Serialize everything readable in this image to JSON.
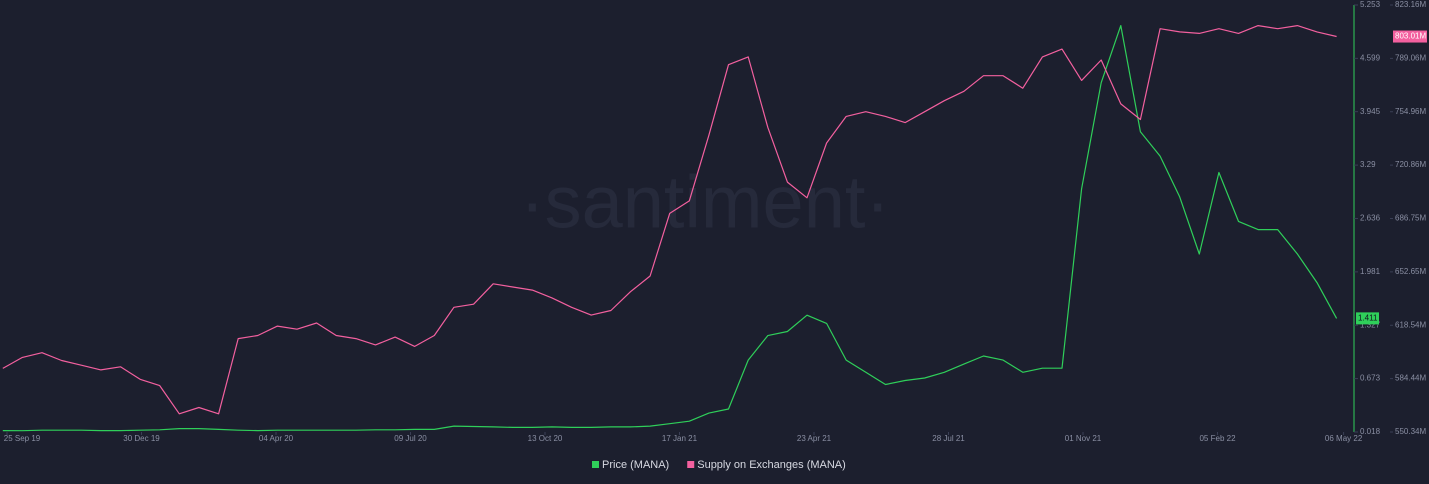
{
  "chart_data": {
    "type": "line",
    "watermark": "·santiment·",
    "x": [
      "2019-09-22",
      "2019-10-06",
      "2019-10-20",
      "2019-11-03",
      "2019-11-17",
      "2019-12-01",
      "2019-12-15",
      "2019-12-29",
      "2020-01-12",
      "2020-01-26",
      "2020-02-09",
      "2020-02-23",
      "2020-03-08",
      "2020-03-22",
      "2020-04-05",
      "2020-04-19",
      "2020-05-03",
      "2020-05-17",
      "2020-05-31",
      "2020-06-14",
      "2020-06-28",
      "2020-07-12",
      "2020-07-26",
      "2020-08-09",
      "2020-08-23",
      "2020-09-06",
      "2020-09-20",
      "2020-10-04",
      "2020-10-18",
      "2020-11-01",
      "2020-11-15",
      "2020-11-29",
      "2020-12-13",
      "2020-12-27",
      "2021-01-10",
      "2021-01-24",
      "2021-02-07",
      "2021-02-21",
      "2021-03-07",
      "2021-03-21",
      "2021-04-04",
      "2021-04-18",
      "2021-05-02",
      "2021-05-16",
      "2021-05-30",
      "2021-06-13",
      "2021-06-27",
      "2021-07-11",
      "2021-07-25",
      "2021-08-08",
      "2021-08-22",
      "2021-09-05",
      "2021-09-19",
      "2021-10-03",
      "2021-10-17",
      "2021-10-31",
      "2021-11-14",
      "2021-11-28",
      "2021-12-12",
      "2021-12-26",
      "2022-01-09",
      "2022-01-23",
      "2022-02-06",
      "2022-02-20",
      "2022-03-06",
      "2022-03-20",
      "2022-04-03",
      "2022-04-17",
      "2022-05-01"
    ],
    "xlim": [
      "2019-09-20",
      "2022-05-12"
    ],
    "xticks": [
      {
        "value": "2019-09-25",
        "label": "25 Sep 19"
      },
      {
        "value": "2019-12-30",
        "label": "30 Dec 19"
      },
      {
        "value": "2020-04-04",
        "label": "04 Apr 20"
      },
      {
        "value": "2020-07-09",
        "label": "09 Jul 20"
      },
      {
        "value": "2020-10-13",
        "label": "13 Oct 20"
      },
      {
        "value": "2021-01-17",
        "label": "17 Jan 21"
      },
      {
        "value": "2021-04-23",
        "label": "23 Apr 21"
      },
      {
        "value": "2021-07-28",
        "label": "28 Jul 21"
      },
      {
        "value": "2021-11-01",
        "label": "01 Nov 21"
      },
      {
        "value": "2022-02-05",
        "label": "05 Feb 22"
      },
      {
        "value": "2022-05-06",
        "label": "06 May 22"
      }
    ],
    "ylim": [
      0.018,
      5.253
    ],
    "yticks": [
      0.018,
      0.673,
      1.327,
      1.981,
      2.636,
      3.29,
      3.945,
      4.599,
      5.253
    ],
    "y2lim": [
      550340000,
      823160000
    ],
    "y2ticks": [
      {
        "value": 550340000,
        "label": "550.34M"
      },
      {
        "value": 584440000,
        "label": "584.44M"
      },
      {
        "value": 618540000,
        "label": "618.54M"
      },
      {
        "value": 652650000,
        "label": "652.65M"
      },
      {
        "value": 686750000,
        "label": "686.75M"
      },
      {
        "value": 720860000,
        "label": "720.86M"
      },
      {
        "value": 754960000,
        "label": "754.96M"
      },
      {
        "value": 789060000,
        "label": "789.06M"
      },
      {
        "value": 823160000,
        "label": "823.16M"
      }
    ],
    "series": [
      {
        "name": "Price (MANA)",
        "color": "#2fcf5a",
        "axis": "y",
        "values": [
          0.035,
          0.034,
          0.04,
          0.04,
          0.04,
          0.035,
          0.035,
          0.04,
          0.045,
          0.06,
          0.06,
          0.05,
          0.04,
          0.035,
          0.04,
          0.04,
          0.04,
          0.04,
          0.04,
          0.045,
          0.045,
          0.05,
          0.05,
          0.09,
          0.085,
          0.08,
          0.075,
          0.075,
          0.08,
          0.075,
          0.075,
          0.08,
          0.08,
          0.09,
          0.12,
          0.15,
          0.25,
          0.3,
          0.9,
          1.2,
          1.25,
          1.45,
          1.35,
          0.9,
          0.75,
          0.6,
          0.65,
          0.68,
          0.75,
          0.85,
          0.95,
          0.9,
          0.75,
          0.8,
          0.8,
          3.0,
          4.3,
          5.0,
          3.7,
          3.4,
          2.9,
          2.2,
          3.2,
          2.6,
          2.5,
          2.5,
          2.2,
          1.85,
          1.411
        ]
      },
      {
        "name": "Supply on Exchanges (MANA)",
        "color": "#f3609f",
        "axis": "y2",
        "last_label": "803.01M",
        "values": [
          591000000,
          598000000,
          601000000,
          596000000,
          593000000,
          590000000,
          592000000,
          584000000,
          580000000,
          562000000,
          566000000,
          562000000,
          610000000,
          612000000,
          618000000,
          616000000,
          620000000,
          612000000,
          610000000,
          606000000,
          611000000,
          605000000,
          612000000,
          630000000,
          632000000,
          645000000,
          643000000,
          641000000,
          636000000,
          630000000,
          625000000,
          628000000,
          640000000,
          650000000,
          690000000,
          698000000,
          740000000,
          785000000,
          790000000,
          745000000,
          710000000,
          700000000,
          735000000,
          752000000,
          755000000,
          752000000,
          748000000,
          755000000,
          762000000,
          768000000,
          778000000,
          778000000,
          770000000,
          790000000,
          795000000,
          775000000,
          788000000,
          760000000,
          750000000,
          808000000,
          806000000,
          805000000,
          808000000,
          805000000,
          810000000,
          808000000,
          810000000,
          806000000,
          803010000
        ]
      }
    ]
  }
}
